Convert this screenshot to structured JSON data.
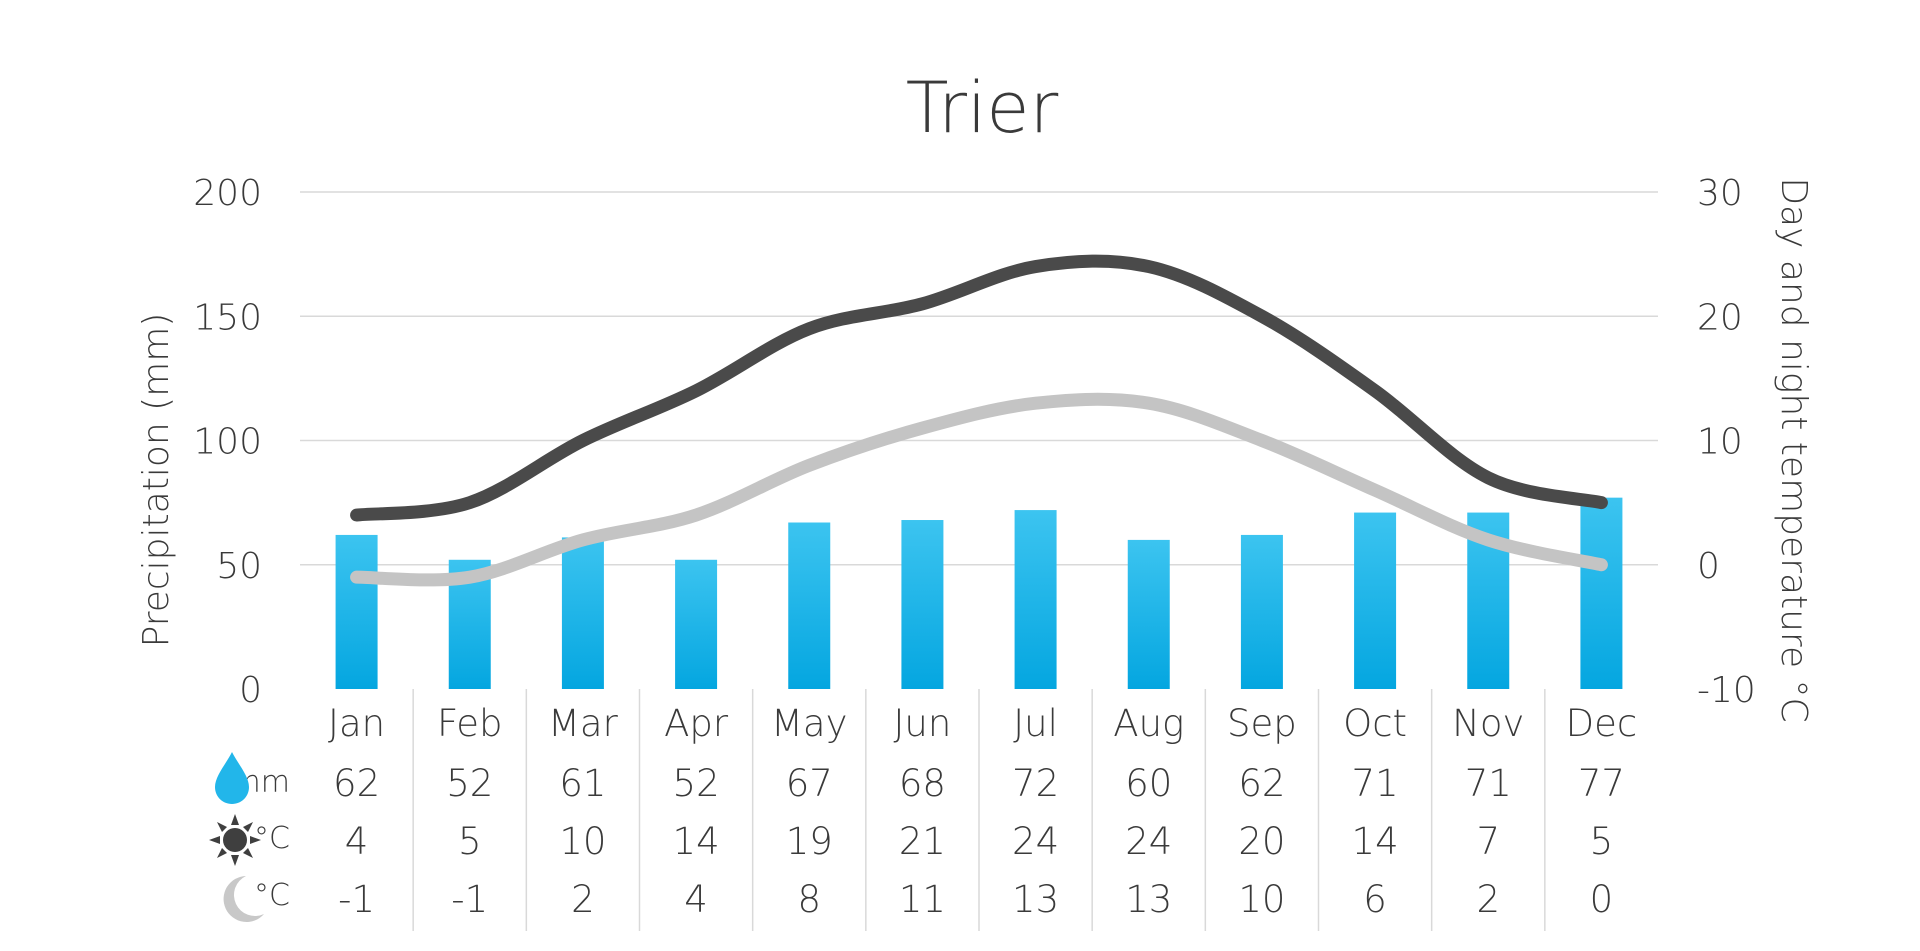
{
  "chart_data": {
    "type": "bar+line",
    "title": "Trier",
    "categories": [
      "Jan",
      "Feb",
      "Mar",
      "Apr",
      "May",
      "Jun",
      "Jul",
      "Aug",
      "Sep",
      "Oct",
      "Nov",
      "Dec"
    ],
    "y_left": {
      "label": "Precipitation (mm)",
      "range": [
        0,
        200
      ],
      "ticks": [
        "0",
        "50",
        "100",
        "150",
        "200"
      ]
    },
    "y_right": {
      "label": "Day and night temperature °C",
      "range": [
        -10,
        30
      ],
      "ticks": [
        "-10",
        "0",
        "10",
        "20",
        "30"
      ]
    },
    "grid": true,
    "series": [
      {
        "type": "bar",
        "axis": "left",
        "values": [
          62,
          52,
          61,
          52,
          67,
          68,
          72,
          60,
          62,
          71,
          71,
          77
        ],
        "color": "#22b6ea"
      },
      {
        "type": "line",
        "axis": "right",
        "values": [
          4,
          5,
          10,
          14,
          19,
          21,
          24,
          24,
          20,
          14,
          7,
          5
        ],
        "color": "#4a4a4a"
      },
      {
        "type": "line",
        "axis": "right",
        "values": [
          -1,
          -1,
          2,
          4,
          8,
          11,
          13,
          13,
          10,
          6,
          2,
          0
        ],
        "color": "#c4c4c4"
      }
    ],
    "table": {
      "rows": [
        {
          "icon": "raindrop-icon",
          "unit": "mm",
          "values": [
            "62",
            "52",
            "61",
            "52",
            "67",
            "68",
            "72",
            "60",
            "62",
            "71",
            "71",
            "77"
          ]
        },
        {
          "icon": "sun-icon",
          "unit": "°C",
          "values": [
            "4",
            "5",
            "10",
            "14",
            "19",
            "21",
            "24",
            "24",
            "20",
            "14",
            "7",
            "5"
          ]
        },
        {
          "icon": "moon-icon",
          "unit": "°C",
          "values": [
            "-1",
            "-1",
            "2",
            "4",
            "8",
            "11",
            "13",
            "13",
            "10",
            "6",
            "2",
            "0"
          ]
        }
      ]
    },
    "colors": {
      "bar": "#22b6ea",
      "bar_bottom": "#04a6e0",
      "day_line": "#4a4a4a",
      "night_line": "#c4c4c4",
      "grid": "#d9d9d9",
      "text": "#3a3a3a"
    }
  }
}
